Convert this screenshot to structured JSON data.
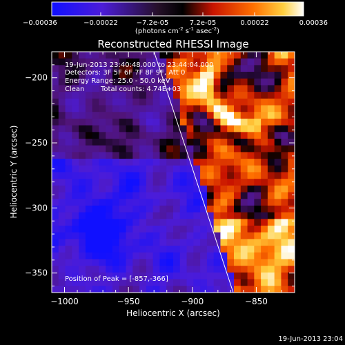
{
  "colorbar": {
    "tick_labels": [
      "-0.00036",
      "-0.00022",
      "-7.2e-05",
      "7.2e-05",
      "0.00022",
      "0.00036"
    ],
    "units_main": "(photons cm",
    "units_exp1": "-2",
    "units_mid": " s",
    "units_exp2": "-1",
    "units_tail": " asec",
    "units_exp3": "-2",
    "units_close": ")",
    "range": [
      -0.00036,
      0.00036
    ]
  },
  "image_info": {
    "time_range": "19-Jun-2013 23:40:48.000 to 23:44:04.000",
    "detectors": "Detectors: 3F 5F 6F 7F 8F 9F, Att 0",
    "energy": "Energy Range: 25.0 - 50.0 keV",
    "clean": "Clean",
    "counts": "Total counts: 4.74E+03",
    "peak": "Position of Peak = [-857,-366]"
  },
  "footer": {
    "timestamp": "19-Jun-2013 23:04"
  },
  "chart_data": {
    "type": "heatmap",
    "title": "Reconstructed RHESSI Image",
    "xlabel": "Heliocentric X (arcsec)",
    "ylabel": "Heliocentric Y (arcsec)",
    "xlim": [
      -1010,
      -820
    ],
    "ylim": [
      -365,
      -180
    ],
    "x_ticks": [
      -1000,
      -950,
      -900,
      -850
    ],
    "y_ticks": [
      -350,
      -300,
      -250,
      -200
    ],
    "x_tick_labels": [
      "−1000",
      "−950",
      "−900",
      "−850"
    ],
    "y_tick_labels": [
      "−350",
      "−300",
      "−250",
      "−200"
    ],
    "peak": [
      -857,
      -366
    ],
    "limb_line": [
      [
        -930,
        -180
      ],
      [
        -868,
        -365
      ]
    ],
    "colormap": [
      "#0000ff",
      "#5a00c8",
      "#000000",
      "#ff1e00",
      "#ff8c00",
      "#ffffff"
    ]
  }
}
